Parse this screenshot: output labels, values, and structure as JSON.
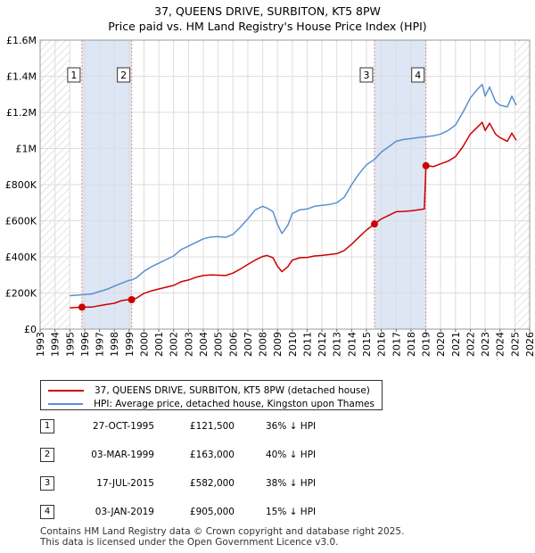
{
  "title": {
    "line1": "37, QUEENS DRIVE, SURBITON, KT5 8PW",
    "line2": "Price paid vs. HM Land Registry's House Price Index (HPI)"
  },
  "colors": {
    "property": "#cc0000",
    "hpi": "#5b8fd0",
    "shade": "#dde6f4",
    "grid": "#dddddd",
    "marker_line": "#e88888"
  },
  "chart_data": {
    "type": "line",
    "title": "37, QUEENS DRIVE, SURBITON, KT5 8PW — Price paid vs. HM Land Registry's House Price Index (HPI)",
    "xlim": [
      1993,
      2026
    ],
    "ylim": [
      0,
      1600000
    ],
    "x_ticks": [
      1993,
      1994,
      1995,
      1996,
      1997,
      1998,
      1999,
      2000,
      2001,
      2002,
      2003,
      2004,
      2005,
      2006,
      2007,
      2008,
      2009,
      2010,
      2011,
      2012,
      2013,
      2014,
      2015,
      2016,
      2017,
      2018,
      2019,
      2020,
      2021,
      2022,
      2023,
      2024,
      2025,
      2026
    ],
    "y_ticks": [
      {
        "value": 0,
        "label": "£0"
      },
      {
        "value": 200000,
        "label": "£200K"
      },
      {
        "value": 400000,
        "label": "£400K"
      },
      {
        "value": 600000,
        "label": "£600K"
      },
      {
        "value": 800000,
        "label": "£800K"
      },
      {
        "value": 1000000,
        "label": "£1M"
      },
      {
        "value": 1200000,
        "label": "£1.2M"
      },
      {
        "value": 1400000,
        "label": "£1.4M"
      },
      {
        "value": 1600000,
        "label": "£1.6M"
      }
    ],
    "hatched_ranges": [
      [
        1993,
        1995.0
      ],
      [
        2025.0,
        2026
      ]
    ],
    "shaded_ranges": [
      [
        1995.82,
        1999.17
      ],
      [
        2015.54,
        2019.01
      ]
    ],
    "series": [
      {
        "name": "37, QUEENS DRIVE, SURBITON, KT5 8PW (detached house)",
        "color": "#cc0000",
        "points": [
          [
            1995.0,
            118000
          ],
          [
            1995.82,
            121500
          ],
          [
            1996.5,
            122000
          ],
          [
            1997.0,
            130000
          ],
          [
            1997.5,
            137000
          ],
          [
            1998.0,
            143000
          ],
          [
            1998.5,
            158000
          ],
          [
            1999.0,
            164000
          ],
          [
            1999.17,
            163000
          ],
          [
            1999.5,
            172000
          ],
          [
            2000.0,
            198000
          ],
          [
            2000.5,
            212000
          ],
          [
            2001.0,
            222000
          ],
          [
            2001.5,
            232000
          ],
          [
            2002.0,
            242000
          ],
          [
            2002.5,
            262000
          ],
          [
            2003.0,
            272000
          ],
          [
            2003.5,
            287000
          ],
          [
            2004.0,
            297000
          ],
          [
            2004.5,
            300000
          ],
          [
            2005.0,
            299000
          ],
          [
            2005.5,
            297000
          ],
          [
            2006.0,
            310000
          ],
          [
            2006.5,
            333000
          ],
          [
            2007.0,
            358000
          ],
          [
            2007.5,
            382000
          ],
          [
            2008.0,
            402000
          ],
          [
            2008.3,
            408000
          ],
          [
            2008.7,
            395000
          ],
          [
            2009.0,
            348000
          ],
          [
            2009.3,
            318000
          ],
          [
            2009.7,
            345000
          ],
          [
            2010.0,
            382000
          ],
          [
            2010.5,
            395000
          ],
          [
            2011.0,
            397000
          ],
          [
            2011.5,
            405000
          ],
          [
            2012.0,
            408000
          ],
          [
            2012.5,
            413000
          ],
          [
            2013.0,
            418000
          ],
          [
            2013.5,
            435000
          ],
          [
            2014.0,
            470000
          ],
          [
            2014.5,
            510000
          ],
          [
            2015.0,
            548000
          ],
          [
            2015.54,
            582000
          ],
          [
            2016.0,
            610000
          ],
          [
            2016.5,
            630000
          ],
          [
            2017.0,
            650000
          ],
          [
            2017.5,
            652000
          ],
          [
            2018.0,
            655000
          ],
          [
            2018.5,
            660000
          ],
          [
            2018.9,
            665000
          ],
          [
            2019.01,
            905000
          ],
          [
            2019.5,
            900000
          ],
          [
            2020.0,
            915000
          ],
          [
            2020.5,
            930000
          ],
          [
            2021.0,
            955000
          ],
          [
            2021.5,
            1010000
          ],
          [
            2022.0,
            1080000
          ],
          [
            2022.5,
            1120000
          ],
          [
            2022.8,
            1145000
          ],
          [
            2023.0,
            1100000
          ],
          [
            2023.3,
            1140000
          ],
          [
            2023.7,
            1080000
          ],
          [
            2024.0,
            1060000
          ],
          [
            2024.5,
            1040000
          ],
          [
            2024.8,
            1085000
          ],
          [
            2025.1,
            1045000
          ]
        ]
      },
      {
        "name": "HPI: Average price, detached house, Kingston upon Thames",
        "color": "#5b8fd0",
        "points": [
          [
            1995.0,
            185000
          ],
          [
            1995.82,
            190000
          ],
          [
            1996.5,
            195000
          ],
          [
            1997.0,
            208000
          ],
          [
            1997.5,
            220000
          ],
          [
            1998.0,
            238000
          ],
          [
            1998.5,
            255000
          ],
          [
            1999.0,
            270000
          ],
          [
            1999.17,
            272000
          ],
          [
            1999.5,
            285000
          ],
          [
            2000.0,
            320000
          ],
          [
            2000.5,
            345000
          ],
          [
            2001.0,
            365000
          ],
          [
            2001.5,
            385000
          ],
          [
            2002.0,
            405000
          ],
          [
            2002.5,
            440000
          ],
          [
            2003.0,
            460000
          ],
          [
            2003.5,
            480000
          ],
          [
            2004.0,
            500000
          ],
          [
            2004.5,
            510000
          ],
          [
            2005.0,
            512000
          ],
          [
            2005.5,
            508000
          ],
          [
            2006.0,
            525000
          ],
          [
            2006.5,
            565000
          ],
          [
            2007.0,
            610000
          ],
          [
            2007.5,
            660000
          ],
          [
            2008.0,
            680000
          ],
          [
            2008.3,
            670000
          ],
          [
            2008.7,
            650000
          ],
          [
            2009.0,
            580000
          ],
          [
            2009.3,
            530000
          ],
          [
            2009.7,
            575000
          ],
          [
            2010.0,
            640000
          ],
          [
            2010.5,
            660000
          ],
          [
            2011.0,
            665000
          ],
          [
            2011.5,
            680000
          ],
          [
            2012.0,
            685000
          ],
          [
            2012.5,
            690000
          ],
          [
            2013.0,
            700000
          ],
          [
            2013.5,
            730000
          ],
          [
            2014.0,
            800000
          ],
          [
            2014.5,
            860000
          ],
          [
            2015.0,
            910000
          ],
          [
            2015.54,
            940000
          ],
          [
            2016.0,
            980000
          ],
          [
            2016.5,
            1010000
          ],
          [
            2017.0,
            1040000
          ],
          [
            2017.5,
            1050000
          ],
          [
            2018.0,
            1055000
          ],
          [
            2018.5,
            1060000
          ],
          [
            2019.01,
            1065000
          ],
          [
            2019.5,
            1070000
          ],
          [
            2020.0,
            1080000
          ],
          [
            2020.5,
            1100000
          ],
          [
            2021.0,
            1130000
          ],
          [
            2021.5,
            1200000
          ],
          [
            2022.0,
            1280000
          ],
          [
            2022.5,
            1330000
          ],
          [
            2022.8,
            1355000
          ],
          [
            2023.0,
            1290000
          ],
          [
            2023.3,
            1340000
          ],
          [
            2023.7,
            1260000
          ],
          [
            2024.0,
            1240000
          ],
          [
            2024.5,
            1230000
          ],
          [
            2024.8,
            1290000
          ],
          [
            2025.1,
            1240000
          ]
        ]
      }
    ],
    "sale_markers": [
      {
        "label": "1",
        "x": 1995.82,
        "y": 121500
      },
      {
        "label": "2",
        "x": 1999.17,
        "y": 163000
      },
      {
        "label": "3",
        "x": 2015.54,
        "y": 582000
      },
      {
        "label": "4",
        "x": 2019.01,
        "y": 905000
      }
    ]
  },
  "legend": {
    "property": "37, QUEENS DRIVE, SURBITON, KT5 8PW (detached house)",
    "hpi": "HPI: Average price, detached house, Kingston upon Thames"
  },
  "sales": [
    {
      "num": "1",
      "date": "27-OCT-1995",
      "price": "£121,500",
      "hpi": "36% ↓ HPI"
    },
    {
      "num": "2",
      "date": "03-MAR-1999",
      "price": "£163,000",
      "hpi": "40% ↓ HPI"
    },
    {
      "num": "3",
      "date": "17-JUL-2015",
      "price": "£582,000",
      "hpi": "38% ↓ HPI"
    },
    {
      "num": "4",
      "date": "03-JAN-2019",
      "price": "£905,000",
      "hpi": "15% ↓ HPI"
    }
  ],
  "footer": {
    "line1": "Contains HM Land Registry data © Crown copyright and database right 2025.",
    "line2": "This data is licensed under the Open Government Licence v3.0."
  }
}
